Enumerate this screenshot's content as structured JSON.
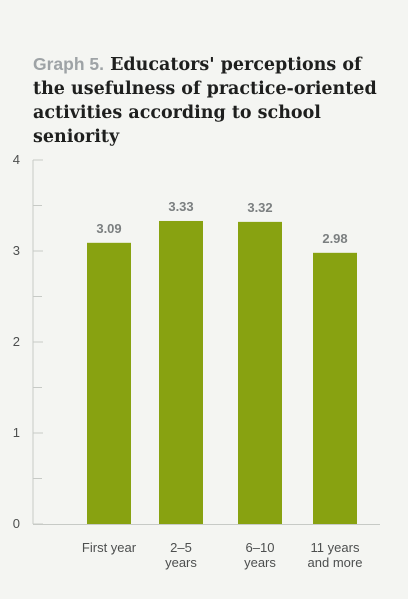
{
  "figure": {
    "label": "Graph 5.",
    "title": "Educators' perceptions of the usefulness of practice-oriented activities according to school seniority"
  },
  "colors": {
    "bar": "#88a211",
    "axis": "#c7cac6",
    "tick_label": "#4d4f4f",
    "value_label": "#7b7f80",
    "label_gray": "#9ea3a6",
    "background": "#f4f5f2"
  },
  "chart_data": {
    "type": "bar",
    "title": "Educators' perceptions of the usefulness of practice-oriented activities according to school seniority",
    "categories": [
      "First year",
      "2–5 years",
      "6–10 years",
      "11 years and more"
    ],
    "category_lines": [
      [
        "First year"
      ],
      [
        "2–5",
        "years"
      ],
      [
        "6–10",
        "years"
      ],
      [
        "11 years",
        "and more"
      ]
    ],
    "values": [
      3.09,
      3.33,
      3.32,
      2.98
    ],
    "value_labels": [
      "3.09",
      "3.33",
      "3.32",
      "2.98"
    ],
    "ylim": [
      0,
      4
    ],
    "yticks": [
      0,
      1,
      2,
      3,
      4
    ],
    "minor_yticks": [
      0.5,
      1.5,
      2.5,
      3.5
    ],
    "xlabel": "",
    "ylabel": "",
    "grid": false,
    "legend": "none"
  }
}
